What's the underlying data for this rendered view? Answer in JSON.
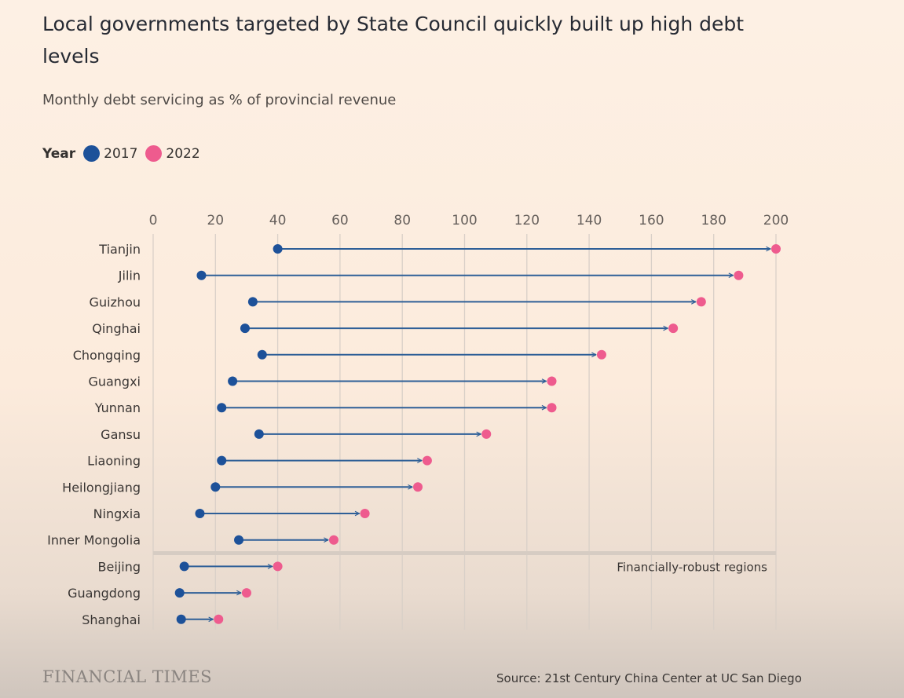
{
  "title": "Local governments targeted by State Council quickly built up high debt levels",
  "subtitle": "Monthly debt servicing as % of provincial revenue",
  "legend": {
    "title": "Year",
    "items": [
      {
        "label": "2017",
        "color": "#1d5199"
      },
      {
        "label": "2022",
        "color": "#ee5b8e"
      }
    ]
  },
  "chart_data": {
    "type": "dumbbell",
    "x_ticks": [
      0,
      20,
      40,
      60,
      80,
      100,
      120,
      140,
      160,
      180,
      200
    ],
    "xlim": [
      0,
      200
    ],
    "grid": true,
    "series": [
      {
        "name": "2017",
        "color": "#1d5199"
      },
      {
        "name": "2022",
        "color": "#ee5b8e"
      }
    ],
    "categories": [
      "Tianjin",
      "Jilin",
      "Guizhou",
      "Qinghai",
      "Chongqing",
      "Guangxi",
      "Yunnan",
      "Gansu",
      "Liaoning",
      "Heilongjiang",
      "Ningxia",
      "Inner Mongolia",
      "Beijing",
      "Guangdong",
      "Shanghai"
    ],
    "values_2017": [
      40,
      15.5,
      32,
      29.5,
      35,
      25.5,
      22,
      34,
      22,
      20,
      15,
      27.5,
      10,
      8.5,
      9
    ],
    "values_2022": [
      200,
      188,
      176,
      167,
      144,
      128,
      128,
      107,
      88,
      85,
      68,
      58,
      40,
      30,
      21
    ],
    "separator_after": "Inner Mongolia",
    "annotation": "Financially-robust regions"
  },
  "footer": {
    "logo": "FINANCIAL TIMES",
    "source": "Source: 21st Century China Center at UC San Diego"
  }
}
